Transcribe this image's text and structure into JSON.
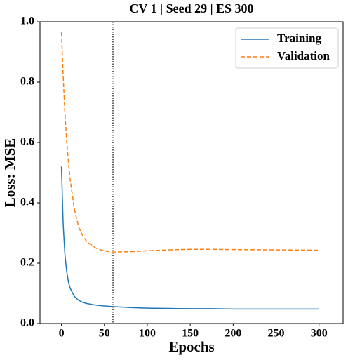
{
  "chart_data": {
    "type": "line",
    "title": "CV 1 | Seed 29 | ES 300",
    "x_label": "Epochs",
    "y_label": "Loss: MSE",
    "x": [
      0,
      2,
      4,
      6,
      8,
      10,
      15,
      20,
      25,
      30,
      40,
      50,
      60,
      80,
      100,
      125,
      150,
      175,
      200,
      250,
      300
    ],
    "series": [
      {
        "name": "Training",
        "color": "#1f77b4",
        "linestyle": "solid",
        "values": [
          0.52,
          0.33,
          0.23,
          0.175,
          0.14,
          0.118,
          0.09,
          0.077,
          0.07,
          0.066,
          0.061,
          0.058,
          0.056,
          0.053,
          0.051,
          0.05,
          0.049,
          0.049,
          0.048,
          0.048,
          0.048
        ]
      },
      {
        "name": "Validation",
        "color": "#ff7f0e",
        "linestyle": "dashed",
        "values": [
          0.965,
          0.82,
          0.7,
          0.61,
          0.54,
          0.48,
          0.38,
          0.32,
          0.29,
          0.27,
          0.25,
          0.24,
          0.237,
          0.238,
          0.241,
          0.244,
          0.246,
          0.246,
          0.245,
          0.244,
          0.243
        ]
      }
    ],
    "vline": {
      "x": 60,
      "color": "#000000",
      "linestyle": "dotted"
    },
    "xlim": [
      -25,
      328
    ],
    "ylim": [
      0,
      1
    ],
    "xticks": [
      0,
      50,
      100,
      150,
      200,
      250,
      300
    ],
    "yticks": [
      {
        "value": 0,
        "label": "0.0"
      },
      0.2,
      0.4,
      0.6,
      0.8,
      {
        "value": 1,
        "label": "1.0"
      }
    ],
    "legend": "upper right"
  }
}
